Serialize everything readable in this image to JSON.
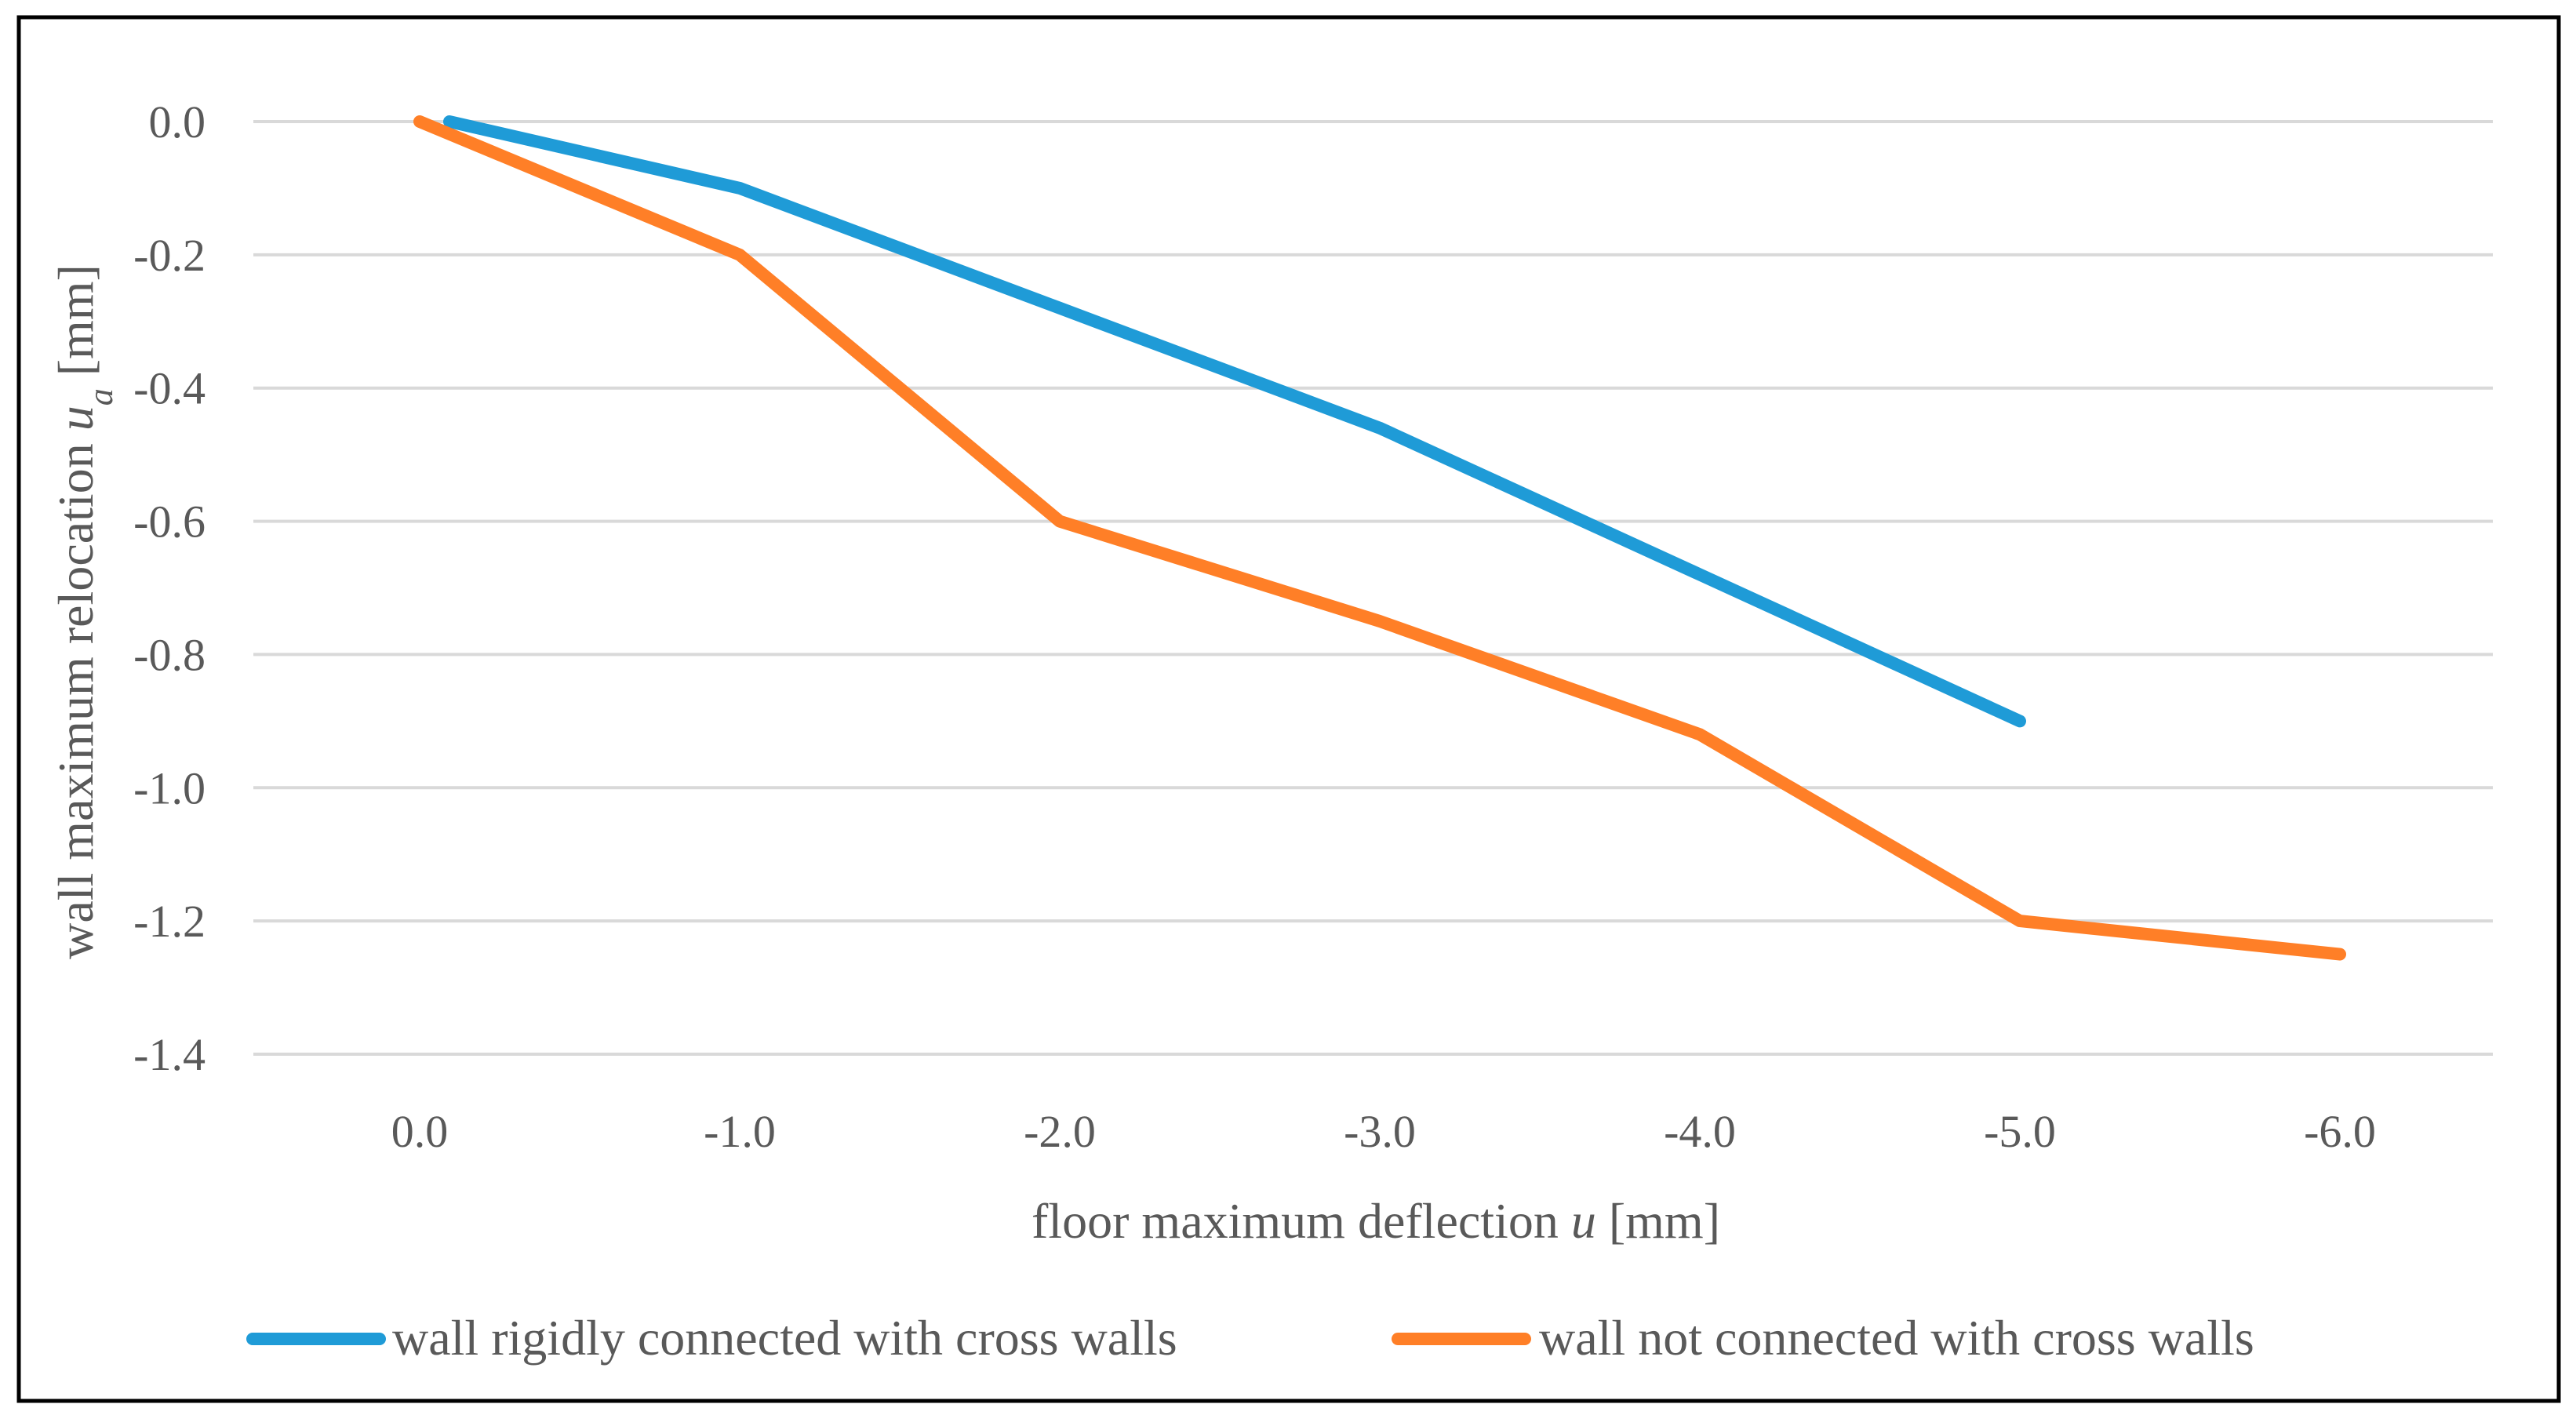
{
  "chart_data": {
    "type": "line",
    "title": "",
    "xlabel_prefix": "floor maximum deflection ",
    "xlabel_var": "u",
    "xlabel_suffix": " [mm]",
    "ylabel_prefix": "wall maximum relocation ",
    "ylabel_var": "u",
    "ylabel_sub": "a",
    "ylabel_suffix": " [mm]",
    "x": [
      0.0,
      -1.0,
      -2.0,
      -3.0,
      -4.0,
      -5.0,
      -6.0
    ],
    "x_tick_labels": [
      "0.0",
      "-1.0",
      "-2.0",
      "-3.0",
      "-4.0",
      "-5.0",
      "-6.0"
    ],
    "ylim": [
      -1.4,
      0.0
    ],
    "y_ticks": [
      0.0,
      -0.2,
      -0.4,
      -0.6,
      -0.8,
      -1.0,
      -1.2,
      -1.4
    ],
    "y_tick_labels": [
      "0.0",
      "-0.2",
      "-0.4",
      "-0.6",
      "-0.8",
      "-1.0",
      "-1.2",
      "-1.4"
    ],
    "grid": true,
    "legend_position": "bottom",
    "series": [
      {
        "name": "wall rigidly connected with cross walls",
        "color": "#1f9bd7",
        "x": [
          0.0,
          -1.0,
          -2.0,
          -3.0,
          -4.0,
          -5.0
        ],
        "values": [
          0.0,
          -0.1,
          -0.28,
          -0.46,
          -0.68,
          -0.9
        ]
      },
      {
        "name": "wall not connected with cross walls",
        "color": "#ff7f27",
        "x": [
          0.0,
          -1.0,
          -2.0,
          -3.0,
          -4.0,
          -5.0,
          -6.0
        ],
        "values": [
          0.0,
          -0.2,
          -0.6,
          -0.75,
          -0.92,
          -1.2,
          -1.25
        ]
      }
    ]
  }
}
